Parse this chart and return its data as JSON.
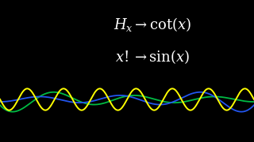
{
  "background_color": "#000000",
  "line1": "$H_x \\rightarrow \\cot(x)$",
  "line2": "$x! \\rightarrow \\sin(x)$",
  "text_color": "#ffffff",
  "text_fontsize": 13.0,
  "green_color": "#00bb44",
  "blue_color": "#2255ee",
  "yellow_color": "#ffff00",
  "figsize": [
    3.2,
    1.8
  ],
  "dpi": 100,
  "xlim": [
    -10,
    10
  ],
  "ylim": [
    -1.5,
    3.5
  ]
}
